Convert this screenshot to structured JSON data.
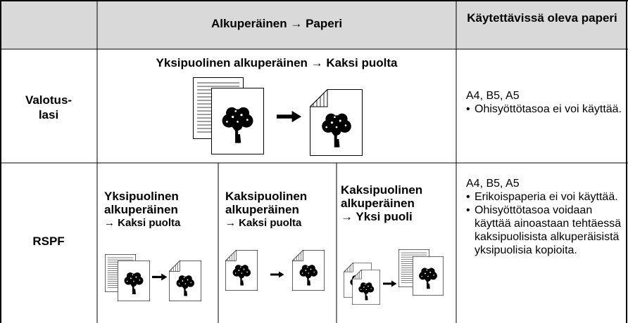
{
  "header": {
    "original_to_paper": "Alkuperäinen → Paperi",
    "available_paper": "Käytettävissä oleva paperi"
  },
  "rows": [
    {
      "label": [
        "Valotus-",
        "lasi"
      ],
      "modes": [
        {
          "caption": [
            "Yksipuolinen alkuperäinen → Kaksi puolta"
          ]
        }
      ],
      "paper": {
        "sizes": "A4, B5, A5",
        "notes": [
          "Ohisyöttötasoa ei voi käyttää."
        ]
      }
    },
    {
      "label": [
        "RSPF"
      ],
      "modes": [
        {
          "caption": [
            "Yksipuolinen",
            "alkuperäinen",
            "→ Kaksi puolta"
          ]
        },
        {
          "caption": [
            "Kaksipuolinen",
            "alkuperäinen",
            "→ Kaksi puolta"
          ]
        },
        {
          "caption": [
            "Kaksipuolinen",
            "alkuperäinen",
            "→ Yksi puoli"
          ]
        }
      ],
      "paper": {
        "sizes": "A4, B5, A5",
        "notes": [
          "Erikoispaperia ei voi käyttää.",
          "Ohisyöttötasoa voidaan käyttää ainoastaan tehtäessä kaksipuolisista alkuperäisistä yksipuolisia kopioita."
        ]
      }
    }
  ]
}
